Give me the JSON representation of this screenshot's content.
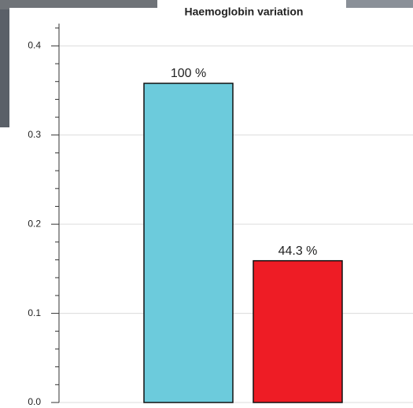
{
  "chart_data": {
    "type": "bar",
    "title": "Haemoglobin variation",
    "categories": [
      null,
      null
    ],
    "series": [
      {
        "values": [
          0.358,
          0.159
        ],
        "colors": [
          "#6ccbdc",
          "#ee1c25"
        ]
      }
    ],
    "annotations": [
      "100 %",
      "44.3 %"
    ],
    "ylim": [
      0,
      0.425
    ],
    "yticks": [
      {
        "value": 0,
        "label": "0.0"
      },
      0.1,
      0.2,
      0.3,
      0.4
    ],
    "minor_yticks": [
      0.02,
      0.04,
      0.06,
      0.08,
      0.12,
      0.14,
      0.16,
      0.18,
      0.22,
      0.24,
      0.26,
      0.28,
      0.32,
      0.34,
      0.36,
      0.38,
      0.42
    ],
    "grid": true
  }
}
